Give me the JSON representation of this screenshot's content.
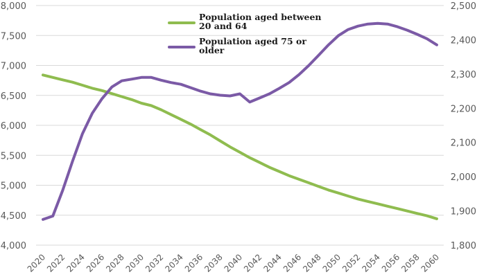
{
  "chart_data": {
    "type": "line",
    "title": "",
    "xlabel": "",
    "ylabel": "",
    "y2label": "",
    "x": [
      2020,
      2021,
      2022,
      2023,
      2024,
      2025,
      2026,
      2027,
      2028,
      2029,
      2030,
      2031,
      2032,
      2033,
      2034,
      2035,
      2036,
      2037,
      2038,
      2039,
      2040,
      2041,
      2042,
      2043,
      2044,
      2045,
      2046,
      2047,
      2048,
      2049,
      2050,
      2051,
      2052,
      2053,
      2054,
      2055,
      2056,
      2057,
      2058,
      2059,
      2060
    ],
    "x_tick_labels": [
      "2020",
      "2022",
      "2024",
      "2026",
      "2028",
      "2030",
      "2032",
      "2034",
      "2036",
      "2038",
      "2040",
      "2042",
      "2044",
      "2046",
      "2048",
      "2050",
      "2052",
      "2054",
      "2056",
      "2058",
      "2060"
    ],
    "ylim": [
      4000,
      8000
    ],
    "y_ticks": [
      4000,
      4500,
      5000,
      5500,
      6000,
      6500,
      7000,
      7500,
      8000
    ],
    "y_tick_labels": [
      "4,000",
      "4,500",
      "5,000",
      "5,500",
      "6,000",
      "6,500",
      "7,000",
      "7,500",
      "8,000"
    ],
    "y2lim": [
      1800,
      2500
    ],
    "y2_ticks": [
      1800,
      1900,
      2000,
      2100,
      2200,
      2300,
      2400,
      2500
    ],
    "y2_tick_labels": [
      "1,800",
      "1,900",
      "2,000",
      "2,100",
      "2,200",
      "2,300",
      "2,400",
      "2,500"
    ],
    "grid": true,
    "legend_position": "top-center",
    "series": [
      {
        "name": "Population aged between 20 and 64",
        "legend_lines": [
          "Population aged between",
          "20 and 64"
        ],
        "axis": "left",
        "color": "#8fbc4f",
        "values": [
          6840,
          6800,
          6760,
          6720,
          6670,
          6620,
          6580,
          6530,
          6480,
          6430,
          6370,
          6330,
          6260,
          6180,
          6100,
          6020,
          5930,
          5840,
          5740,
          5640,
          5550,
          5460,
          5380,
          5300,
          5230,
          5160,
          5100,
          5040,
          4980,
          4920,
          4870,
          4820,
          4770,
          4730,
          4690,
          4650,
          4610,
          4570,
          4530,
          4490,
          4440
        ]
      },
      {
        "name": "Population aged 75 or older",
        "legend_lines": [
          "Population aged 75 or",
          "older"
        ],
        "axis": "right",
        "color": "#7b5aa6",
        "values": [
          1875,
          1885,
          1960,
          2045,
          2125,
          2185,
          2228,
          2262,
          2280,
          2285,
          2290,
          2290,
          2282,
          2275,
          2270,
          2260,
          2250,
          2242,
          2238,
          2236,
          2242,
          2218,
          2230,
          2242,
          2258,
          2275,
          2298,
          2325,
          2355,
          2385,
          2412,
          2430,
          2440,
          2446,
          2448,
          2446,
          2438,
          2428,
          2416,
          2403,
          2385
        ]
      }
    ]
  }
}
